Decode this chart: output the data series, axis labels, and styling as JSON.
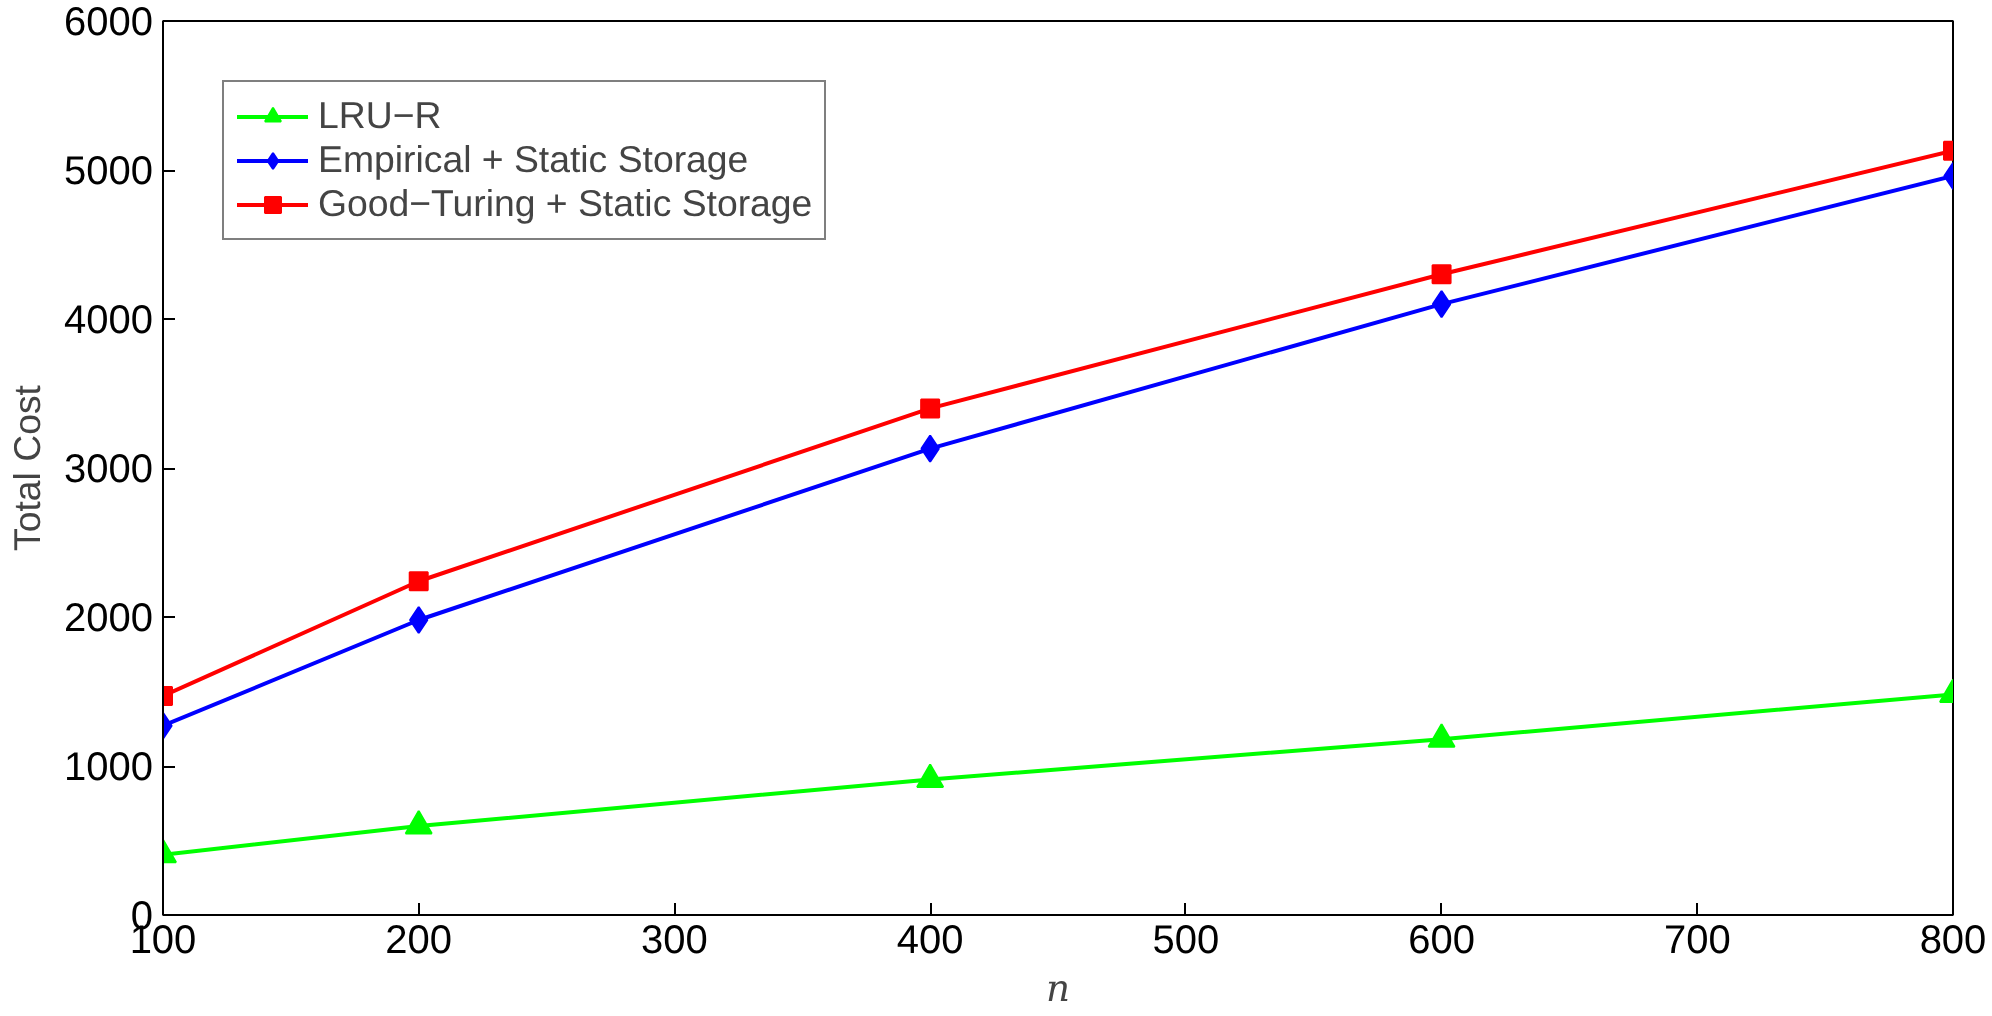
{
  "chart_data": {
    "type": "line",
    "xlabel": "n",
    "ylabel": "Total Cost",
    "x": [
      100,
      200,
      400,
      600,
      800
    ],
    "series": [
      {
        "name": "LRU−R",
        "color": "#00ff00",
        "marker": "triangle",
        "values": [
          405,
          597,
          910,
          1180,
          1480
        ]
      },
      {
        "name": "Empirical + Static Storage",
        "color": "#0000ff",
        "marker": "diamond",
        "values": [
          1270,
          1980,
          3130,
          4100,
          4960
        ]
      },
      {
        "name": "Good−Turing + Static Storage",
        "color": "#ff0000",
        "marker": "square",
        "values": [
          1470,
          2240,
          3400,
          4300,
          5130
        ]
      }
    ],
    "xlim": [
      100,
      800
    ],
    "ylim": [
      0,
      6000
    ],
    "xticks": [
      100,
      200,
      300,
      400,
      500,
      600,
      700,
      800
    ],
    "yticks": [
      0,
      1000,
      2000,
      3000,
      4000,
      5000,
      6000
    ],
    "grid": false,
    "legend": "top left",
    "line_style": "solid"
  }
}
